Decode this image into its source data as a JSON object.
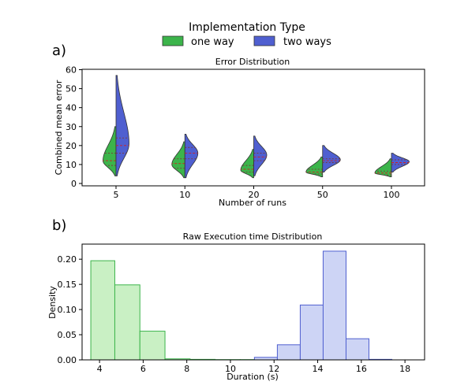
{
  "legend": {
    "title": "Implementation Type",
    "items": [
      {
        "label": "one way",
        "color": "#3cb44b"
      },
      {
        "label": "two ways",
        "color": "#4f5fd0"
      }
    ]
  },
  "panel_labels": [
    "a)",
    "b)"
  ],
  "chart_data": [
    {
      "type": "violin",
      "title": "Error Distribution",
      "xlabel": "Number of runs",
      "ylabel": "Combined mean error",
      "categories": [
        "5",
        "10",
        "20",
        "50",
        "100"
      ],
      "ylim": [
        0,
        60
      ],
      "yticks": [
        0,
        10,
        20,
        30,
        40,
        50,
        60
      ],
      "split": true,
      "series": [
        {
          "name": "one way",
          "color": "#3cb44b",
          "distributions": [
            {
              "min": 4,
              "q1": 9.5,
              "median": 12,
              "q3": 16,
              "max": 30,
              "mode": 12,
              "width": 0.55
            },
            {
              "min": 3,
              "q1": 8,
              "median": 10.5,
              "q3": 13,
              "max": 22,
              "mode": 10,
              "width": 0.55
            },
            {
              "min": 3,
              "q1": 6,
              "median": 7.5,
              "q3": 9.5,
              "max": 18,
              "mode": 7,
              "width": 0.55
            },
            {
              "min": 3.5,
              "q1": 5,
              "median": 6,
              "q3": 7.5,
              "max": 14,
              "mode": 6,
              "width": 0.7
            },
            {
              "min": 3.5,
              "q1": 4.5,
              "median": 5.5,
              "q3": 6.5,
              "max": 13,
              "mode": 5.5,
              "width": 0.7
            }
          ]
        },
        {
          "name": "two ways",
          "color": "#4f5fd0",
          "distributions": [
            {
              "min": 4,
              "q1": 16,
              "median": 20,
              "q3": 24,
              "max": 57,
              "mode": 21,
              "width": 0.55
            },
            {
              "min": 3,
              "q1": 13,
              "median": 16,
              "q3": 19,
              "max": 26,
              "mode": 16,
              "width": 0.55
            },
            {
              "min": 4,
              "q1": 12,
              "median": 14,
              "q3": 16,
              "max": 25,
              "mode": 15,
              "width": 0.55
            },
            {
              "min": 6,
              "q1": 11,
              "median": 12,
              "q3": 13,
              "max": 20,
              "mode": 12.5,
              "width": 0.75
            },
            {
              "min": 6,
              "q1": 10,
              "median": 11,
              "q3": 12.5,
              "max": 16,
              "mode": 11.5,
              "width": 0.75
            }
          ]
        }
      ]
    },
    {
      "type": "histogram",
      "title": "Raw Execution time Distribution",
      "xlabel": "Duration (s)",
      "ylabel": "Density",
      "xlim": [
        3.2,
        18.9
      ],
      "ylim": [
        0,
        0.23
      ],
      "xticks": [
        4,
        6,
        8,
        10,
        12,
        14,
        16,
        18
      ],
      "yticks": [
        0.0,
        0.05,
        0.1,
        0.15,
        0.2
      ],
      "series": [
        {
          "name": "one way",
          "color": "#3cb44b",
          "fill": "#c9f0c4",
          "bins": [
            3.6,
            4.7,
            5.85,
            7.0,
            8.15,
            9.3,
            10.45,
            11.6,
            12.75,
            13.9,
            15.05,
            16.2,
            17.35,
            18.5
          ],
          "values": [
            0.197,
            0.149,
            0.057,
            0.002,
            0.001,
            0.0005,
            0.0005,
            0,
            0,
            0,
            0,
            0,
            0
          ]
        },
        {
          "name": "two ways",
          "color": "#4f5fd0",
          "fill": "#cdd4f5",
          "bins": [
            11.1,
            12.15,
            13.2,
            14.25,
            15.3,
            16.35,
            17.4
          ],
          "values": [
            0.005,
            0.03,
            0.109,
            0.216,
            0.042,
            0.001
          ]
        }
      ]
    }
  ]
}
